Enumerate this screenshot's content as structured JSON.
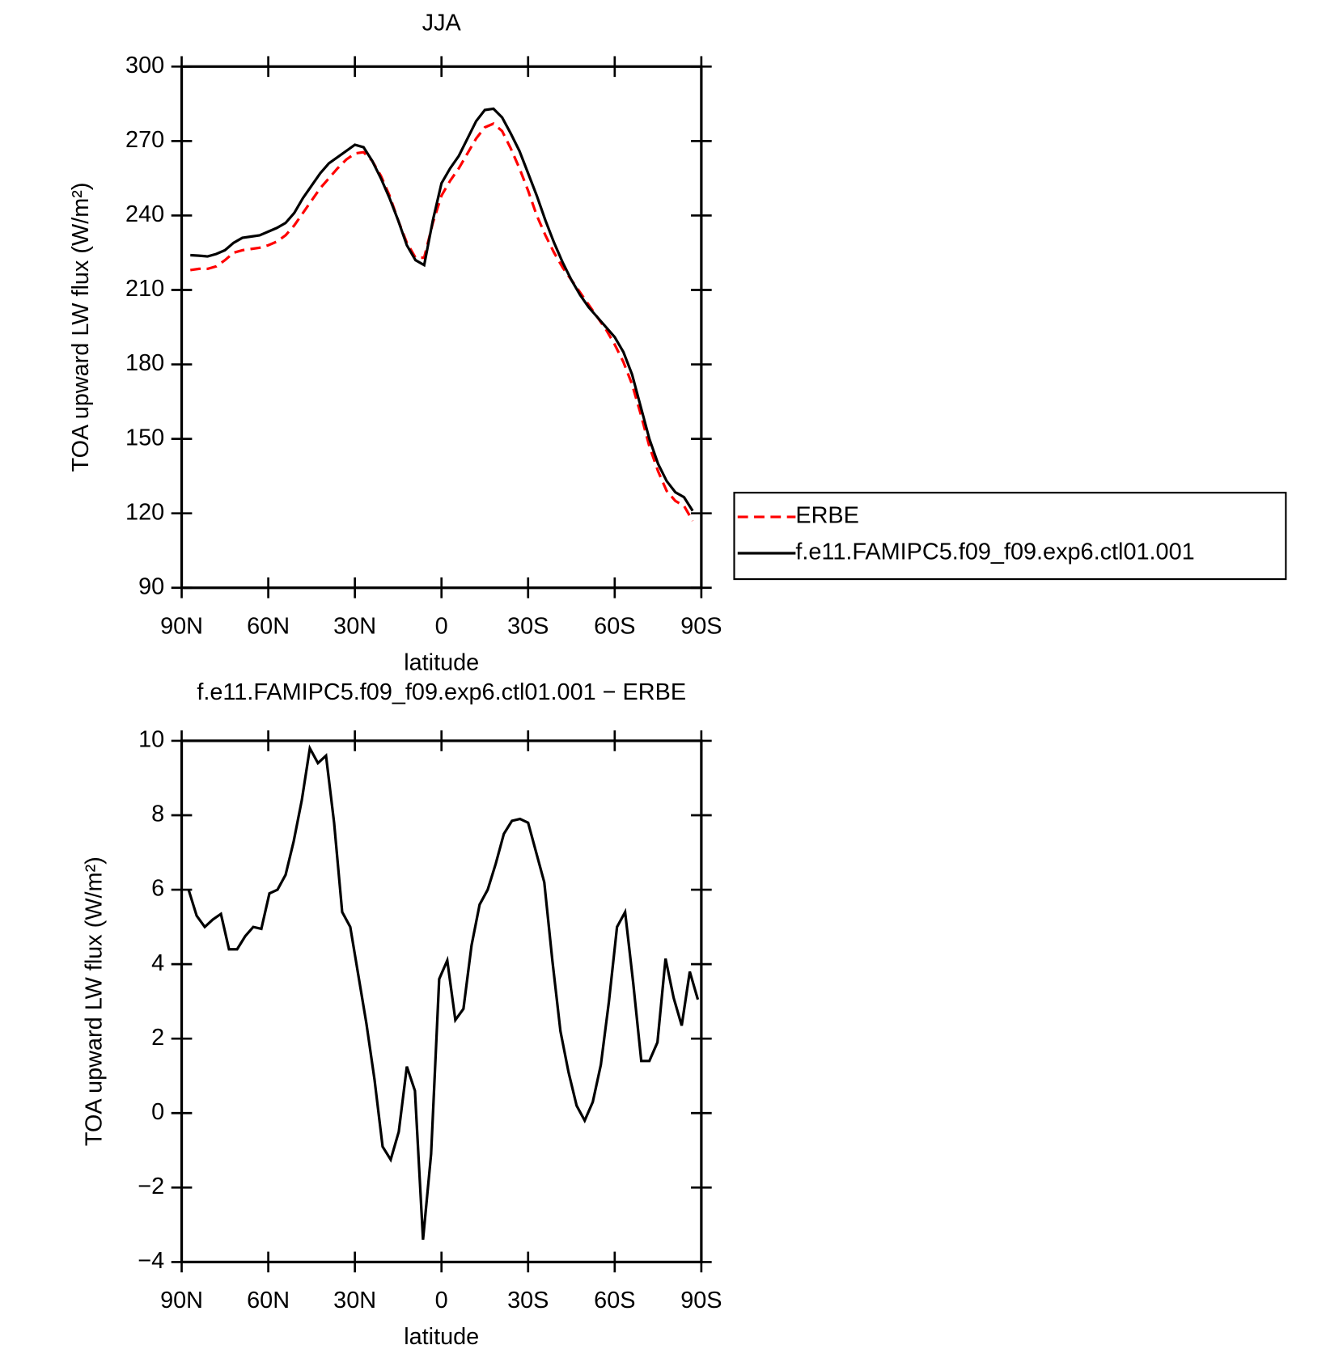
{
  "chart_data": [
    {
      "type": "line",
      "title": "JJA",
      "xlabel": "latitude",
      "ylabel": "TOA upward LW flux (W/m²)",
      "xlim": [
        90,
        -90
      ],
      "xticks": [
        {
          "value": 90,
          "label": "90N"
        },
        {
          "value": 60,
          "label": "60N"
        },
        {
          "value": 30,
          "label": "30N"
        },
        0,
        {
          "value": -30,
          "label": "30S"
        },
        {
          "value": -60,
          "label": "60S"
        },
        {
          "value": -90,
          "label": "90S"
        }
      ],
      "ylim": [
        90,
        300
      ],
      "yticks": [
        90,
        120,
        150,
        180,
        210,
        240,
        270,
        300
      ],
      "legend": "outside-right",
      "x": [
        87,
        84,
        81,
        78,
        75,
        72,
        69,
        66,
        63,
        60,
        57,
        54,
        51,
        48,
        45,
        42,
        39,
        36,
        33,
        30,
        27,
        24,
        21,
        18,
        15,
        12,
        9,
        6,
        3,
        0,
        -3,
        -6,
        -9,
        -12,
        -15,
        -18,
        -21,
        -24,
        -27,
        -30,
        -33,
        -36,
        -39,
        -42,
        -45,
        -48,
        -51,
        -54,
        -57,
        -60,
        -63,
        -66,
        -69,
        -72,
        -75,
        -78,
        -81,
        -84,
        -87
      ],
      "series": [
        {
          "name": "ERBE",
          "color": "#ff0000",
          "dash": "dashed",
          "values": [
            218,
            218.5,
            218.5,
            219.5,
            222,
            225,
            226,
            226.5,
            227,
            228,
            229.5,
            232,
            236,
            241,
            246,
            251,
            255,
            259,
            262.5,
            265,
            265.5,
            262,
            256,
            248,
            238,
            229,
            223,
            223,
            237,
            248,
            254,
            259,
            265,
            271,
            275.5,
            277,
            274,
            267,
            259,
            250,
            240,
            232,
            225,
            219,
            214,
            209,
            204,
            199,
            194,
            188,
            181,
            172,
            160,
            147,
            137,
            129,
            125,
            123,
            117
          ]
        },
        {
          "name": "f.e11.FAMIPC5.f09_f09.exp6.ctl01.001",
          "color": "#000000",
          "dash": "solid",
          "values": [
            224,
            223.8,
            223.5,
            224.5,
            226,
            229,
            231,
            231.5,
            232,
            233.5,
            235,
            237,
            241,
            247,
            252,
            257,
            261,
            263.5,
            266,
            268.5,
            267.5,
            262,
            255,
            247,
            238,
            228,
            222,
            220,
            238,
            253,
            259,
            264,
            271,
            278,
            282.5,
            283,
            279.5,
            273,
            266,
            257,
            248,
            238,
            229,
            221,
            214,
            208,
            203,
            199,
            195,
            191,
            185,
            176,
            163,
            150,
            140,
            133,
            128.5,
            126.5,
            121
          ]
        }
      ]
    },
    {
      "type": "line",
      "title": "f.e11.FAMIPC5.f09_f09.exp6.ctl01.001 − ERBE",
      "xlabel": "latitude",
      "ylabel": "TOA upward LW flux (W/m²)",
      "xlim": [
        90,
        -90
      ],
      "xticks": [
        {
          "value": 90,
          "label": "90N"
        },
        {
          "value": 60,
          "label": "60N"
        },
        {
          "value": 30,
          "label": "30N"
        },
        0,
        {
          "value": -30,
          "label": "30S"
        },
        {
          "value": -60,
          "label": "60S"
        },
        {
          "value": -90,
          "label": "90S"
        }
      ],
      "ylim": [
        -4,
        10
      ],
      "yticks": [
        {
          "value": -4,
          "label": "−4"
        },
        {
          "value": -2,
          "label": "−2"
        },
        0,
        2,
        4,
        6,
        8,
        10
      ],
      "x": [
        87.6,
        84.8,
        82.0,
        79.2,
        76.4,
        73.6,
        70.8,
        68.0,
        65.2,
        62.4,
        59.6,
        56.8,
        54.0,
        51.2,
        48.4,
        45.6,
        42.8,
        40.0,
        37.2,
        34.4,
        31.6,
        28.8,
        26.0,
        23.2,
        20.4,
        17.6,
        14.8,
        12.0,
        9.2,
        6.4,
        3.6,
        0.8,
        -2.0,
        -4.8,
        -7.6,
        -10.4,
        -13.2,
        -16.0,
        -18.8,
        -21.6,
        -24.4,
        -27.2,
        -30.0,
        -32.8,
        -35.6,
        -38.4,
        -41.2,
        -44.0,
        -46.8,
        -49.6,
        -52.4,
        -55.2,
        -58.0,
        -60.8,
        -63.6,
        -66.4,
        -69.2,
        -72.0,
        -74.8,
        -77.6,
        -80.4,
        -83.2,
        -86.0,
        -88.8
      ],
      "series": [
        {
          "color": "#000000",
          "dash": "solid",
          "values": [
            6.0,
            5.3,
            5.0,
            5.2,
            5.35,
            4.4,
            4.4,
            4.75,
            5.0,
            4.95,
            5.9,
            6.0,
            6.4,
            7.3,
            8.4,
            9.8,
            9.4,
            9.6,
            7.8,
            5.4,
            5.0,
            3.7,
            2.4,
            0.9,
            -0.9,
            -1.25,
            -0.5,
            1.25,
            0.6,
            -3.4,
            -1.1,
            3.6,
            4.1,
            2.5,
            2.8,
            4.5,
            5.6,
            6.0,
            6.7,
            7.5,
            7.85,
            7.9,
            7.8,
            7.0,
            6.2,
            4.1,
            2.2,
            1.1,
            0.2,
            -0.2,
            0.3,
            1.3,
            3.0,
            5.0,
            5.4,
            3.5,
            1.4,
            1.4,
            1.9,
            4.15,
            3.1,
            2.35,
            3.8,
            3.05
          ]
        }
      ]
    }
  ]
}
